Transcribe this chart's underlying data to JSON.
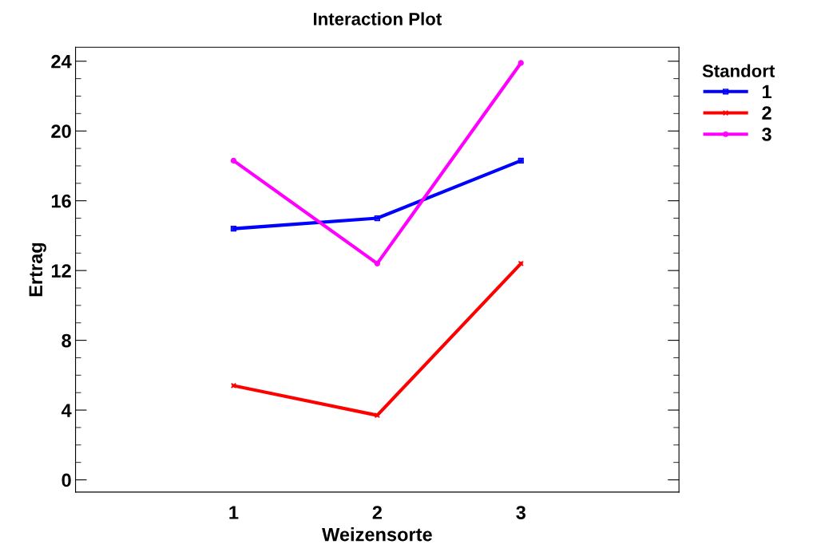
{
  "chart_data": {
    "type": "line",
    "title": "Interaction Plot",
    "xlabel": "Weizensorte",
    "ylabel": "Ertrag",
    "legend_title": "Standort",
    "legend": "right",
    "x": [
      1,
      2,
      3
    ],
    "xlim": [
      -0.1,
      4.1
    ],
    "xticks": [
      1,
      2,
      3
    ],
    "ylim": [
      -0.7,
      24.8
    ],
    "yticks": [
      0,
      4,
      8,
      12,
      16,
      20,
      24
    ],
    "grid": false,
    "series": [
      {
        "name": "1",
        "color": "#0000ff",
        "marker": "square",
        "values": [
          14.4,
          15.0,
          18.3
        ]
      },
      {
        "name": "2",
        "color": "#ff0000",
        "marker": "cross",
        "values": [
          5.4,
          3.7,
          12.4
        ]
      },
      {
        "name": "3",
        "color": "#ff00ff",
        "marker": "circle",
        "values": [
          18.3,
          12.4,
          23.9
        ]
      }
    ]
  }
}
